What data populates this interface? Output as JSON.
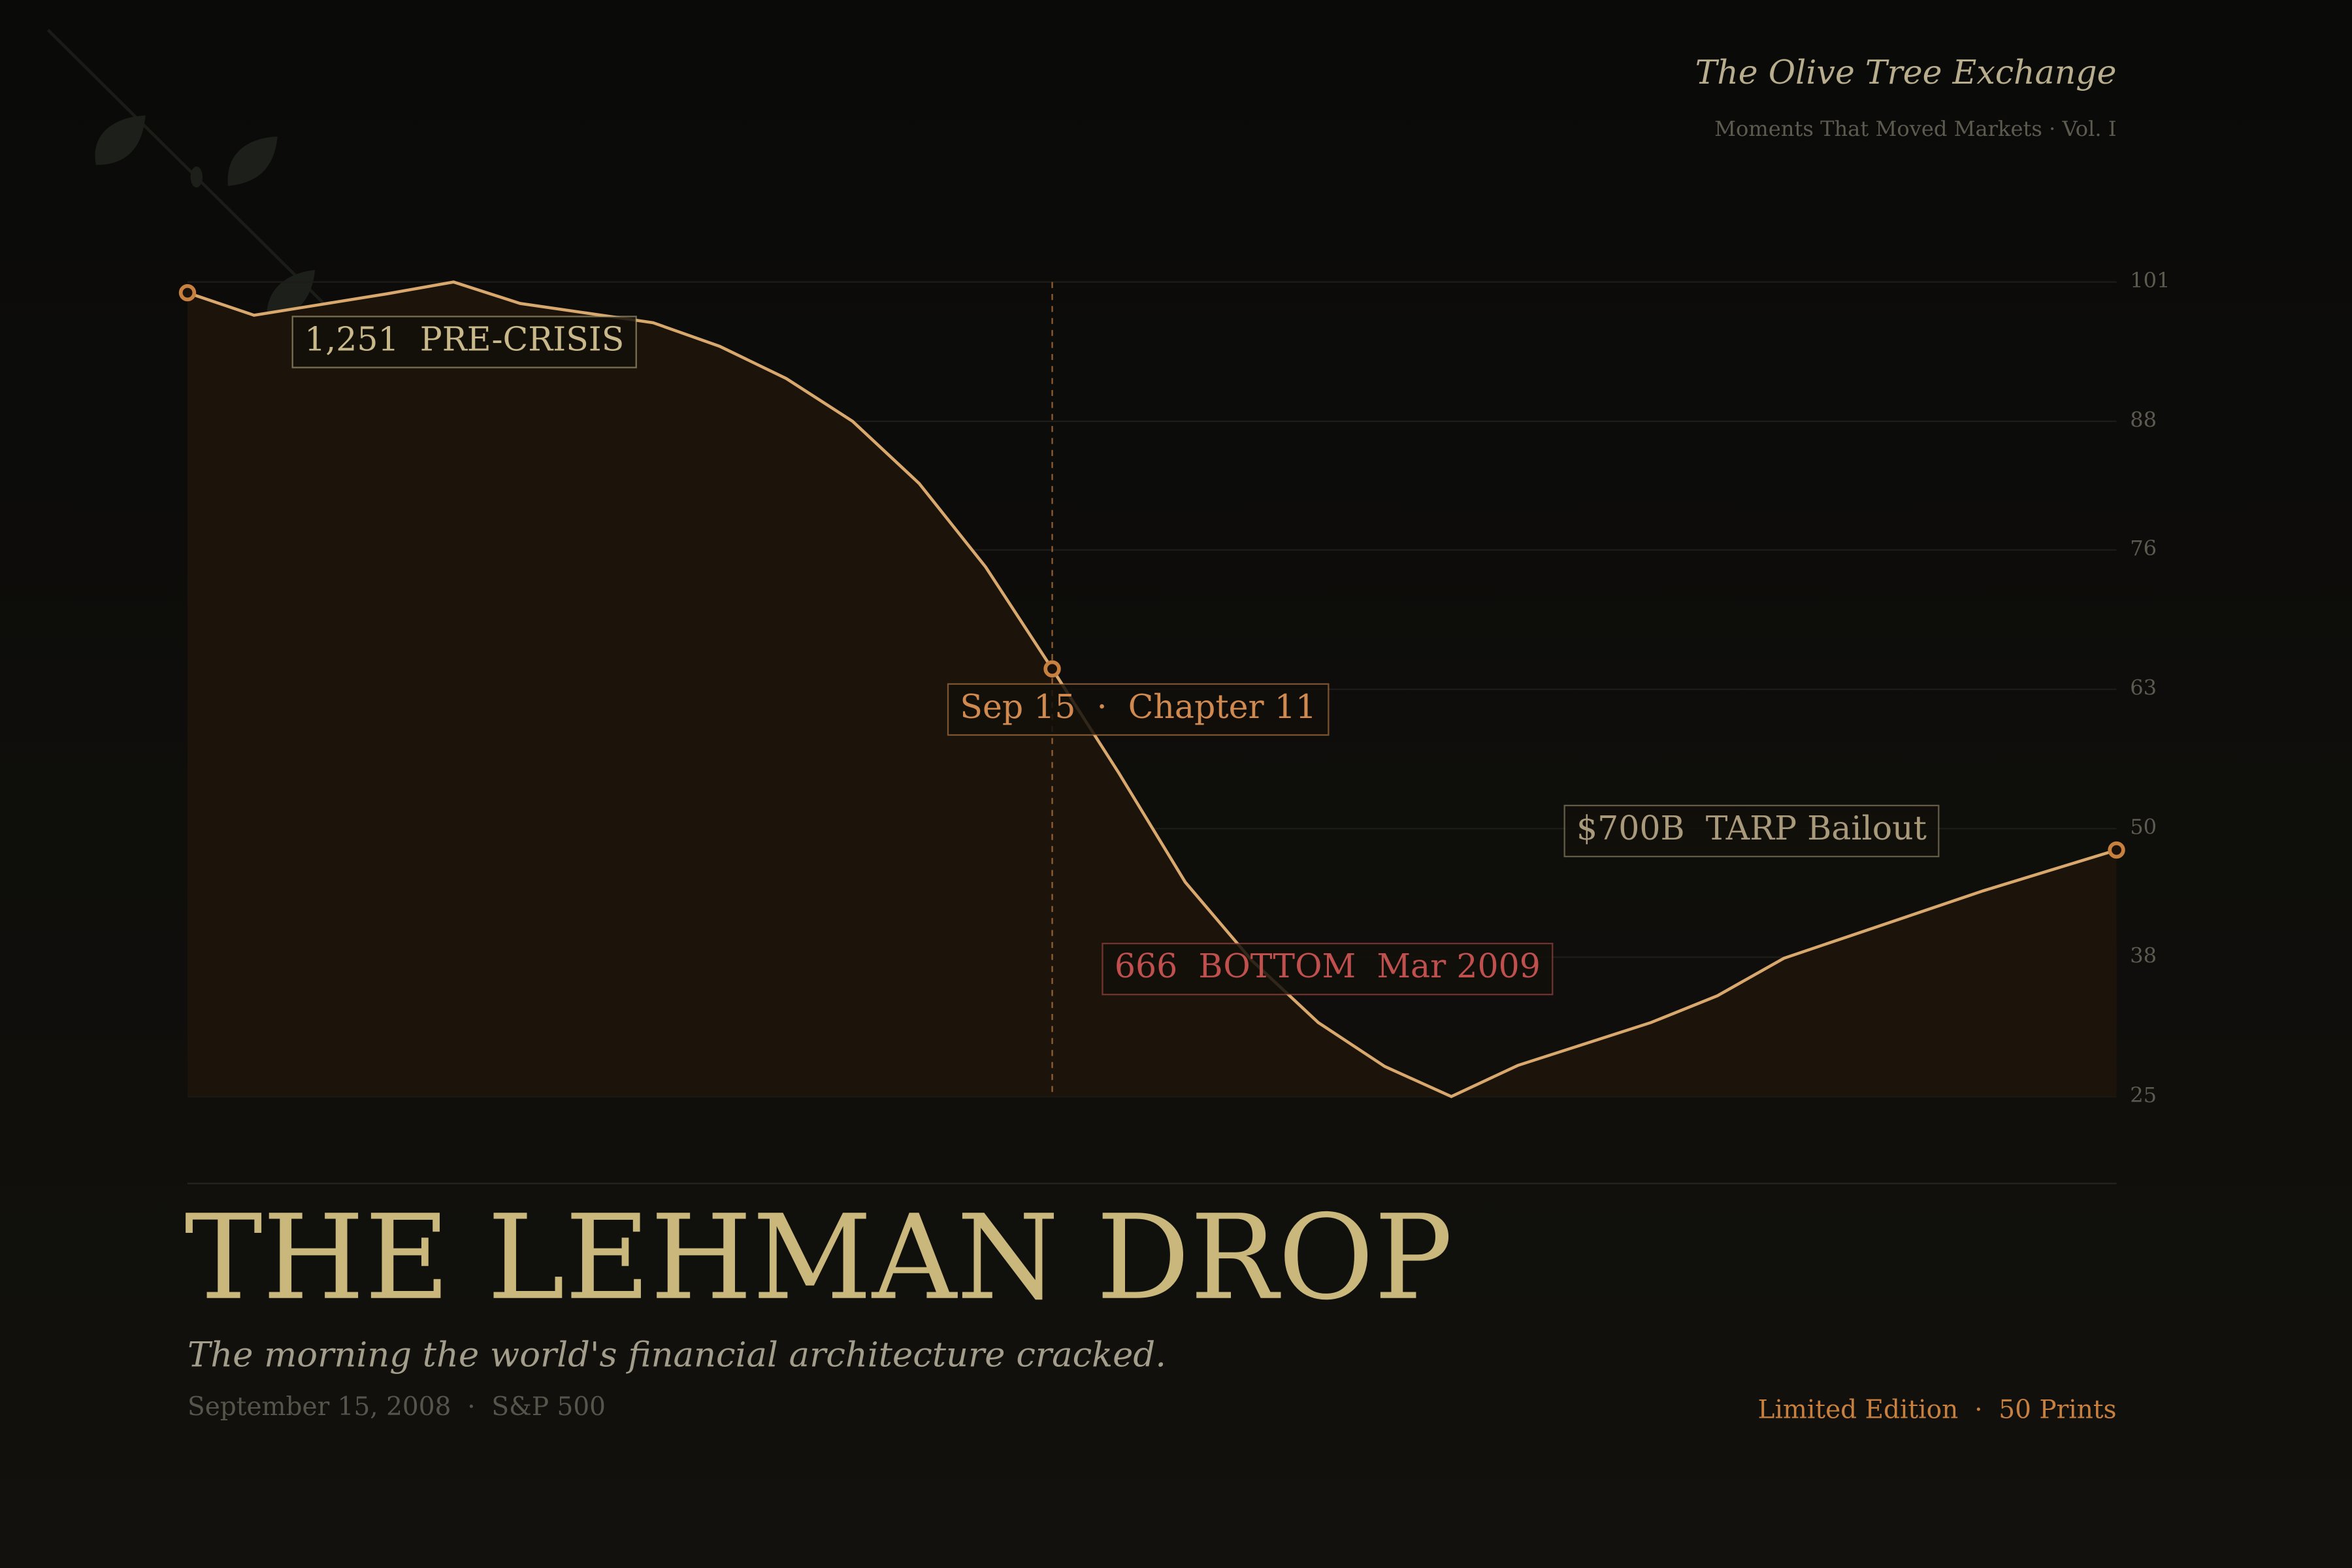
{
  "chart_data": {
    "type": "line",
    "brand": "The Olive Tree Exchange",
    "series_label": "Moments That Moved Markets · Vol. I",
    "title": "THE LEHMAN DROP",
    "subtitle": "The morning the world's financial architecture cracked.",
    "caption": "September 15, 2008  ·  S&P 500",
    "edition": "Limited Edition  ·  50 Prints",
    "values": [
      100.0,
      97.9,
      98.9,
      99.9,
      101,
      99.0,
      98.1,
      97.2,
      95.0,
      92.0,
      88.0,
      82.2,
      74.4,
      64.9,
      55.2,
      45.0,
      37.7,
      31.9,
      27.8,
      25,
      27.9,
      29.9,
      31.9,
      34.4,
      37.9,
      40.0,
      42.1,
      44.2,
      46.1,
      48.0
    ],
    "color": "#d9a86c",
    "area_color": "#1c140b",
    "marker_color": "#c8803f",
    "ylim": [
      25,
      101
    ],
    "yticks": [
      25,
      38,
      50,
      63,
      76,
      88,
      101
    ],
    "grid": true,
    "annotations": [
      {
        "text": "1,251  PRE-CRISIS",
        "color": "#c9b98a"
      },
      {
        "text": "Sep 15  ·  Chapter 11",
        "color": "#d08a4f"
      },
      {
        "text": "$700B  TARP Bailout",
        "color": "#a89a7a"
      },
      {
        "text": "666  BOTTOM  Mar 2009",
        "color": "#c0504d"
      }
    ]
  }
}
